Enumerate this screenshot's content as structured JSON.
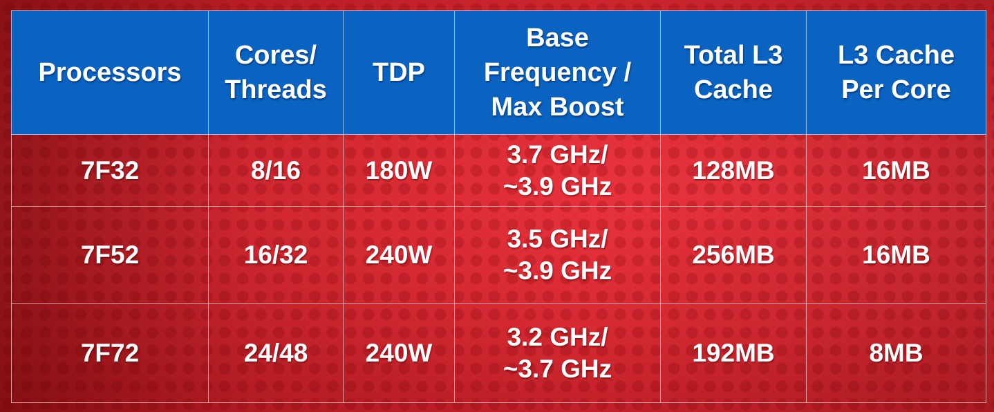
{
  "table": {
    "headers": [
      "Processors",
      "Cores/\nThreads",
      "TDP",
      "Base\nFrequency /\nMax Boost",
      "Total L3\nCache",
      "L3 Cache\nPer Core"
    ],
    "rows": [
      [
        "7F32",
        "8/16",
        "180W",
        "3.7 GHz/\n~3.9 GHz",
        "128MB",
        "16MB"
      ],
      [
        "7F52",
        "16/32",
        "240W",
        "3.5 GHz/\n~3.9 GHz",
        "256MB",
        "16MB"
      ],
      [
        "7F72",
        "24/48",
        "240W",
        "3.2 GHz/\n~3.7 GHz",
        "192MB",
        "8MB"
      ]
    ]
  },
  "colors": {
    "header_background": "#0a63c0",
    "body_background": "#d32a30",
    "text": "#ffffff"
  }
}
